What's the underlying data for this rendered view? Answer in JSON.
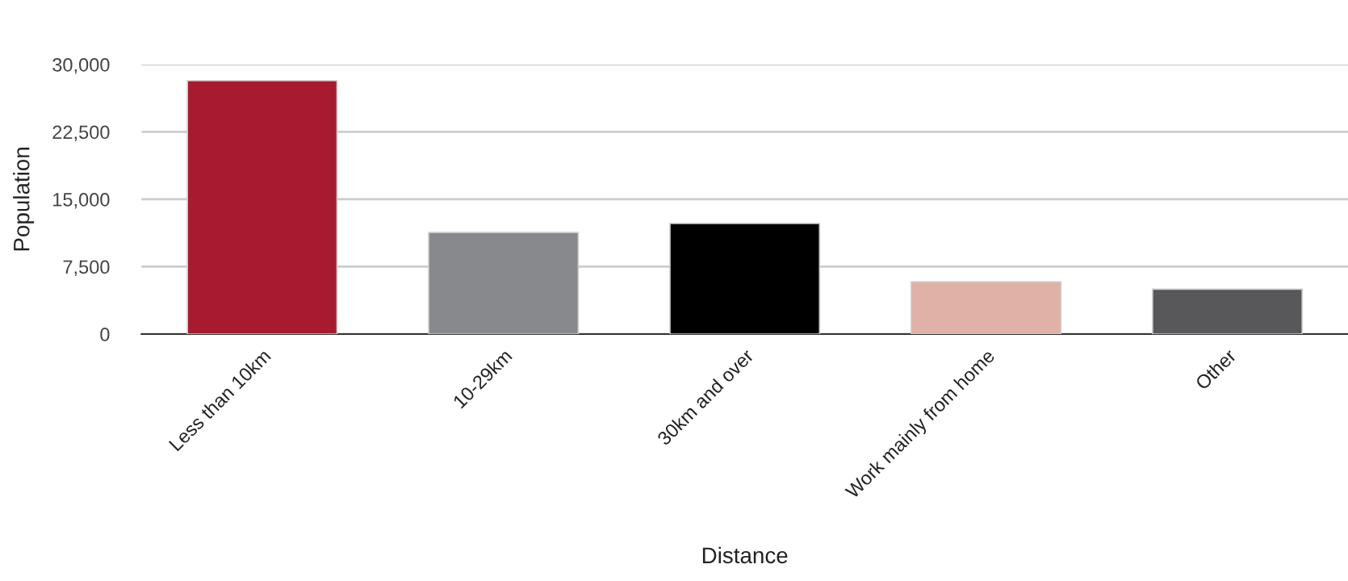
{
  "chart_data": {
    "type": "bar",
    "xlabel": "Distance",
    "ylabel": "Population",
    "categories": [
      "Less than 10km",
      "10-29km",
      "30km and over",
      "Work mainly from home",
      "Other"
    ],
    "values": [
      28200,
      11300,
      12300,
      5800,
      5000
    ],
    "colors": [
      "#a81a30",
      "#88898d",
      "#000000",
      "#e0b1a7",
      "#58585a"
    ],
    "ylim": [
      0,
      30000
    ],
    "yticks": [
      0,
      {
        "value": 7500,
        "label": "7,500"
      },
      {
        "value": 15000,
        "label": "15,000"
      },
      {
        "value": 22500,
        "label": "22,500"
      },
      {
        "value": 30000,
        "label": "30,000"
      }
    ],
    "grid": "y",
    "legend": false
  }
}
